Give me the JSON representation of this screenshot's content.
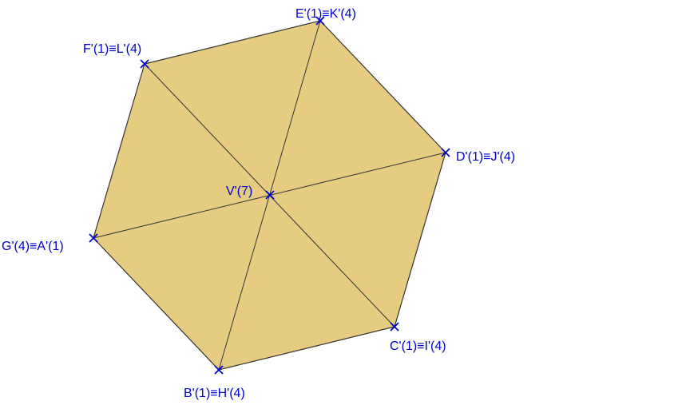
{
  "diagram": {
    "fill_color": "#e6cc80",
    "edge_color": "#333333",
    "marker_color": "#0000cc",
    "label_color": "#0000cc",
    "points": [
      {
        "id": "A",
        "label": "G'(4)≡A'(1)"
      },
      {
        "id": "B",
        "label": "B'(1)≡H'(4)"
      },
      {
        "id": "C",
        "label": "C'(1)≡I'(4)"
      },
      {
        "id": "D",
        "label": "D'(1)≡J'(4)"
      },
      {
        "id": "E",
        "label": "E'(1)≡K'(4)"
      },
      {
        "id": "F",
        "label": "F'(1)≡L'(4)"
      },
      {
        "id": "V",
        "label": "V'(7)"
      }
    ],
    "polygon_order": [
      "A",
      "B",
      "C",
      "D",
      "E",
      "F"
    ],
    "diagonals": [
      [
        "A",
        "D"
      ],
      [
        "B",
        "E"
      ],
      [
        "C",
        "F"
      ]
    ]
  }
}
